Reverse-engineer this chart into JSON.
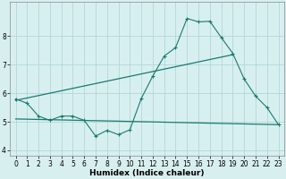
{
  "x": [
    0,
    1,
    2,
    3,
    4,
    5,
    6,
    7,
    8,
    9,
    10,
    11,
    12,
    13,
    14,
    15,
    16,
    17,
    18,
    19,
    20,
    21,
    22,
    23
  ],
  "y_main": [
    5.8,
    5.65,
    5.2,
    5.05,
    5.2,
    5.2,
    5.05,
    4.5,
    4.7,
    4.55,
    4.72,
    5.82,
    6.6,
    7.3,
    7.6,
    8.62,
    8.5,
    8.52,
    7.95,
    7.4,
    6.5,
    5.9,
    5.5,
    4.9
  ],
  "line1_x": [
    0,
    19
  ],
  "line1_y": [
    5.75,
    7.35
  ],
  "line2_x": [
    0,
    23
  ],
  "line2_y": [
    5.1,
    4.9
  ],
  "color": "#1a7a6e",
  "bg_color": "#d8eff0",
  "grid_color": "#b0d8d8",
  "xlabel": "Humidex (Indice chaleur)",
  "ylim": [
    3.8,
    9.2
  ],
  "xlim": [
    -0.5,
    23.5
  ],
  "yticks": [
    4,
    5,
    6,
    7,
    8
  ],
  "xticks": [
    0,
    1,
    2,
    3,
    4,
    5,
    6,
    7,
    8,
    9,
    10,
    11,
    12,
    13,
    14,
    15,
    16,
    17,
    18,
    19,
    20,
    21,
    22,
    23
  ],
  "xlabel_fontsize": 6.5,
  "tick_fontsize": 5.5,
  "figsize": [
    3.2,
    2.0
  ],
  "dpi": 100
}
